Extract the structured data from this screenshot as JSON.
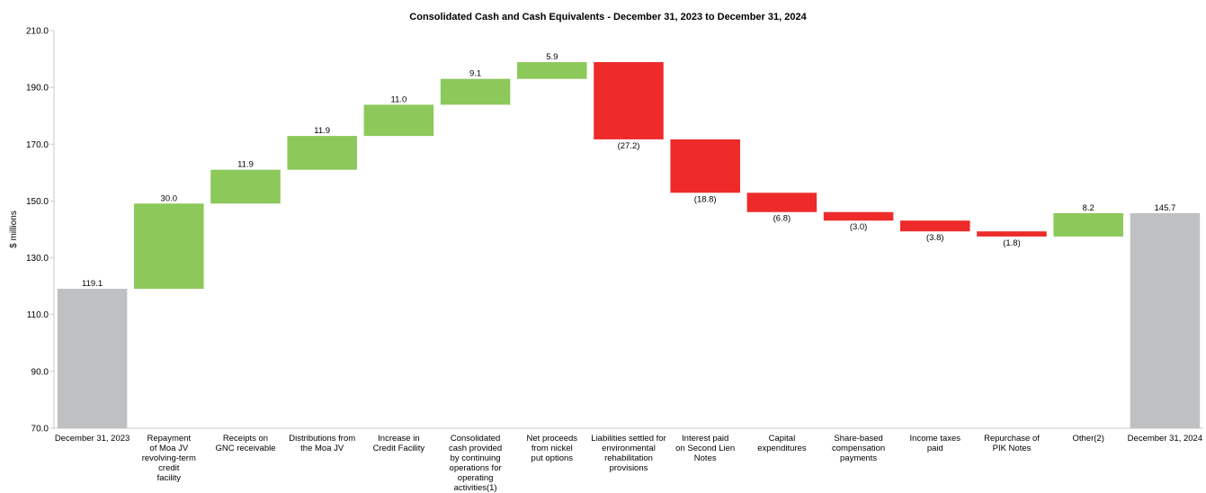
{
  "chart_data": {
    "type": "bar",
    "title": "Consolidated  Cash  and  Cash  Equivalents  -  December  31,  2023  to  December  31,  2024",
    "ylabel": "$ millions",
    "xlabel": "",
    "ylim": [
      70,
      210
    ],
    "yticks": [
      "70.0",
      "90.0",
      "110.0",
      "130.0",
      "150.0",
      "170.0",
      "190.0",
      "210.0"
    ],
    "ytick_values": [
      70,
      90,
      110,
      130,
      150,
      170,
      190,
      210
    ],
    "grid": false,
    "colors": {
      "total": "#bfc0c2",
      "increase": "#8cc85a",
      "decrease": "#ee2a2a"
    },
    "bars": [
      {
        "label": [
          "December 31, 2023"
        ],
        "kind": "total",
        "start": 0,
        "end": 119.1,
        "value_label": "119.1"
      },
      {
        "label": [
          "Repayment",
          "of Moa JV",
          "revolving-term",
          "credit",
          "facility"
        ],
        "kind": "increase",
        "start": 119.1,
        "end": 149.1,
        "value_label": "30.0"
      },
      {
        "label": [
          "Receipts on",
          "GNC receivable"
        ],
        "kind": "increase",
        "start": 149.1,
        "end": 161.0,
        "value_label": "11.9"
      },
      {
        "label": [
          "Distributions from",
          "the Moa JV"
        ],
        "kind": "increase",
        "start": 161.0,
        "end": 172.9,
        "value_label": "11.9"
      },
      {
        "label": [
          "Increase in",
          "Credit Facility"
        ],
        "kind": "increase",
        "start": 172.9,
        "end": 183.9,
        "value_label": "11.0"
      },
      {
        "label": [
          "Consolidated",
          "cash provided",
          "by continuing",
          "operations for",
          "operating",
          "activities(1)"
        ],
        "kind": "increase",
        "start": 183.9,
        "end": 193.0,
        "value_label": "9.1"
      },
      {
        "label": [
          "Net proceeds",
          "from nickel",
          "put options"
        ],
        "kind": "increase",
        "start": 193.0,
        "end": 198.9,
        "value_label": "5.9"
      },
      {
        "label": [
          "Liabilities settled for",
          "environmental",
          "rehabilitation",
          "provisions"
        ],
        "kind": "decrease",
        "start": 198.9,
        "end": 171.7,
        "value_label": "(27.2)"
      },
      {
        "label": [
          "Interest paid",
          "on Second Lien",
          "Notes"
        ],
        "kind": "decrease",
        "start": 171.7,
        "end": 152.9,
        "value_label": "(18.8)"
      },
      {
        "label": [
          "Capital",
          "expenditures"
        ],
        "kind": "decrease",
        "start": 152.9,
        "end": 146.1,
        "value_label": "(6.8)"
      },
      {
        "label": [
          "Share-based",
          "compensation",
          "payments"
        ],
        "kind": "decrease",
        "start": 146.1,
        "end": 143.1,
        "value_label": "(3.0)"
      },
      {
        "label": [
          "Income taxes",
          "paid"
        ],
        "kind": "decrease",
        "start": 143.1,
        "end": 139.3,
        "value_label": "(3.8)"
      },
      {
        "label": [
          "Repurchase of",
          "PIK Notes"
        ],
        "kind": "decrease",
        "start": 139.3,
        "end": 137.5,
        "value_label": "(1.8)"
      },
      {
        "label": [
          "Other(2)"
        ],
        "kind": "increase",
        "start": 137.5,
        "end": 145.7,
        "value_label": "8.2"
      },
      {
        "label": [
          "December 31, 2024"
        ],
        "kind": "total",
        "start": 0,
        "end": 145.7,
        "value_label": "145.7"
      }
    ]
  }
}
